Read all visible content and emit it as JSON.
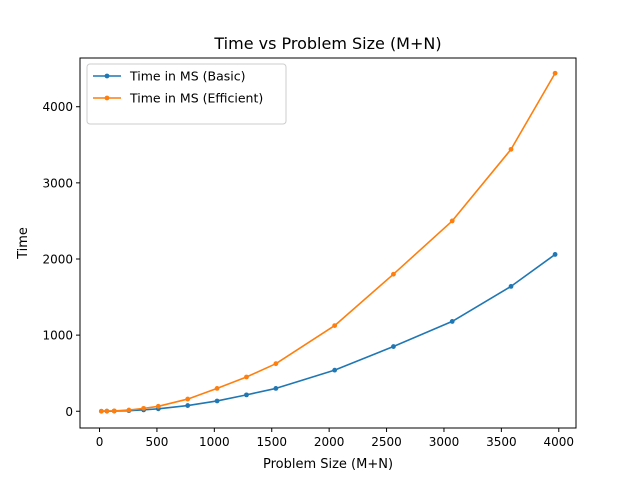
{
  "chart_data": {
    "type": "line",
    "title": "Time vs Problem Size (M+N)",
    "xlabel": "Problem Size (M+N)",
    "ylabel": "Time",
    "xlim": [
      -170,
      4150
    ],
    "ylim": [
      -220,
      4640
    ],
    "xticks": [
      0,
      500,
      1000,
      1500,
      2000,
      2500,
      3000,
      3500,
      4000
    ],
    "yticks": [
      0,
      1000,
      2000,
      3000,
      4000
    ],
    "grid": false,
    "legend": "top-left",
    "x": [
      16,
      64,
      128,
      256,
      384,
      512,
      768,
      1024,
      1280,
      1536,
      2048,
      2560,
      3072,
      3584,
      3968
    ],
    "series": [
      {
        "name": "Time in MS (Basic)",
        "color": "#1f77b4",
        "values": [
          0.3,
          1,
          2,
          8,
          18,
          32,
          75,
          135,
          215,
          300,
          540,
          850,
          1180,
          1640,
          2060
        ]
      },
      {
        "name": "Time in MS (Efficient)",
        "color": "#ff7f0e",
        "values": [
          0.5,
          2,
          5,
          16,
          38,
          65,
          160,
          300,
          450,
          625,
          1125,
          1800,
          2500,
          3440,
          4440
        ]
      }
    ]
  }
}
